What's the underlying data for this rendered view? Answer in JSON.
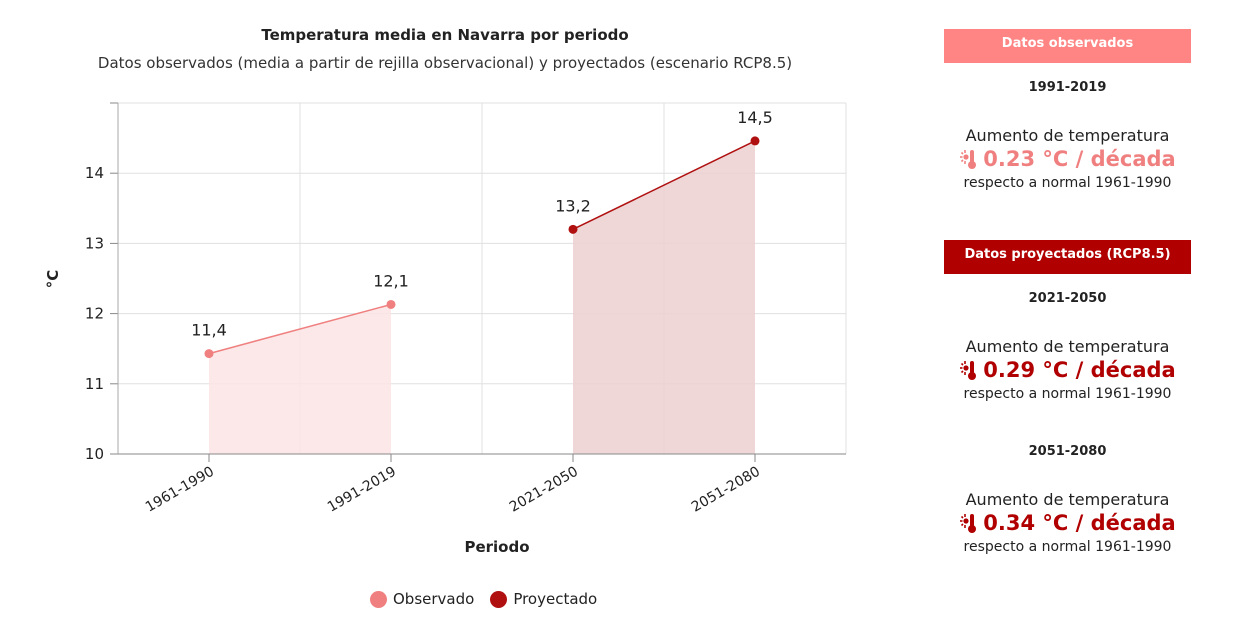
{
  "chart_data": {
    "type": "area",
    "title": "Temperatura media en Navarra por periodo",
    "subtitle": "Datos observados (media a partir de rejilla observacional) y proyectados (escenario RCP8.5)",
    "xlabel": "Periodo",
    "ylabel": "°C",
    "categories": [
      "1961-1990",
      "1991-2019",
      "2021-2050",
      "2051-2080"
    ],
    "yticks": [
      "10",
      "11",
      "12",
      "13",
      "14"
    ],
    "ylim": [
      10,
      15
    ],
    "grid": true,
    "legend_position": "bottom",
    "series": [
      {
        "name": "Observado",
        "color": "#f08080",
        "fill": "#fce4e4",
        "points": [
          {
            "x": "1961-1990",
            "y": 11.43,
            "label": "11,4"
          },
          {
            "x": "1991-2019",
            "y": 12.13,
            "label": "12,1"
          }
        ]
      },
      {
        "name": "Proyectado",
        "color": "#b01010",
        "fill": "#ecd0d0",
        "points": [
          {
            "x": "2021-2050",
            "y": 13.2,
            "label": "13,2"
          },
          {
            "x": "2051-2080",
            "y": 14.46,
            "label": "14,5"
          }
        ]
      }
    ]
  },
  "sidebar": {
    "observed_header": "Datos observados",
    "observed_header_color": "#ff8585",
    "projected_header": "Datos proyectados (RCP8.5)",
    "projected_header_color": "#b00000",
    "blocks": [
      {
        "period": "1991-2019",
        "label": "Aumento de temperatura",
        "value": "0.23 °C / década",
        "ref": "respecto a normal 1961-1990",
        "color": "#f08080",
        "icon": "thermometer-sun-icon"
      },
      {
        "period": "2021-2050",
        "label": "Aumento de temperatura",
        "value": "0.29 °C / década",
        "ref": "respecto a normal 1961-1990",
        "color": "#b00000",
        "icon": "thermometer-sun-icon"
      },
      {
        "period": "2051-2080",
        "label": "Aumento de temperatura",
        "value": "0.34 °C / década",
        "ref": "respecto a normal 1961-1990",
        "color": "#b00000",
        "icon": "thermometer-sun-icon"
      }
    ]
  }
}
